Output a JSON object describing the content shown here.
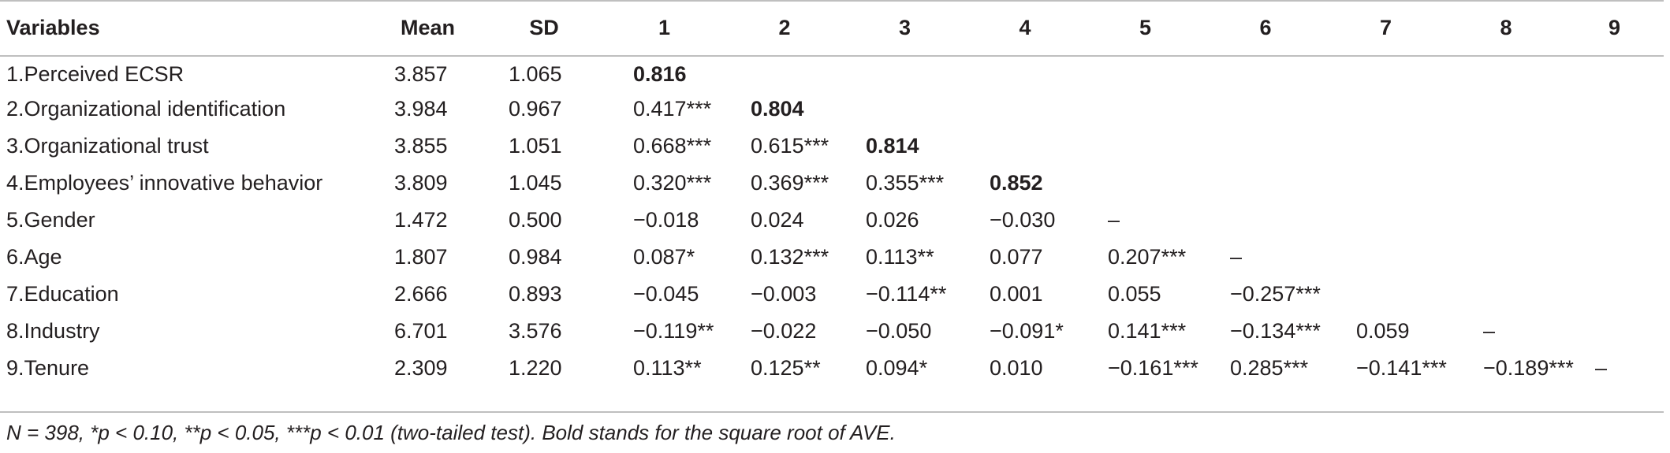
{
  "table": {
    "headers": [
      "Variables",
      "Mean",
      "SD",
      "1",
      "2",
      "3",
      "4",
      "5",
      "6",
      "7",
      "8",
      "9"
    ],
    "rows": [
      {
        "variable": "1.Perceived ECSR",
        "mean": "3.857",
        "sd": "1.065",
        "cells": [
          "0.816",
          "",
          "",
          "",
          "",
          "",
          "",
          "",
          ""
        ],
        "bold_index": 0
      },
      {
        "variable": "2.Organizational identification",
        "mean": "3.984",
        "sd": "0.967",
        "cells": [
          "0.417***",
          "0.804",
          "",
          "",
          "",
          "",
          "",
          "",
          ""
        ],
        "bold_index": 1
      },
      {
        "variable": "3.Organizational trust",
        "mean": "3.855",
        "sd": "1.051",
        "cells": [
          "0.668***",
          "0.615***",
          "0.814",
          "",
          "",
          "",
          "",
          "",
          ""
        ],
        "bold_index": 2
      },
      {
        "variable": "4.Employees’ innovative behavior",
        "mean": "3.809",
        "sd": "1.045",
        "cells": [
          "0.320***",
          "0.369***",
          "0.355***",
          "0.852",
          "",
          "",
          "",
          "",
          ""
        ],
        "bold_index": 3
      },
      {
        "variable": "5.Gender",
        "mean": "1.472",
        "sd": "0.500",
        "cells": [
          "−0.018",
          "0.024",
          "0.026",
          "−0.030",
          "–",
          "",
          "",
          "",
          ""
        ],
        "bold_index": -1
      },
      {
        "variable": "6.Age",
        "mean": "1.807",
        "sd": "0.984",
        "cells": [
          "0.087*",
          "0.132***",
          "0.113**",
          "0.077",
          "0.207***",
          "–",
          "",
          "",
          ""
        ],
        "bold_index": -1
      },
      {
        "variable": "7.Education",
        "mean": "2.666",
        "sd": "0.893",
        "cells": [
          "−0.045",
          "−0.003",
          "−0.114**",
          "0.001",
          "0.055",
          "−0.257***",
          "",
          "",
          ""
        ],
        "bold_index": -1
      },
      {
        "variable": "8.Industry",
        "mean": "6.701",
        "sd": "3.576",
        "cells": [
          "−0.119**",
          "−0.022",
          "−0.050",
          "−0.091*",
          "0.141***",
          "−0.134***",
          "0.059",
          "–",
          ""
        ],
        "bold_index": -1
      },
      {
        "variable": "9.Tenure",
        "mean": "2.309",
        "sd": "1.220",
        "cells": [
          "0.113**",
          "0.125**",
          "0.094*",
          "0.010",
          "−0.161***",
          "0.285***",
          "−0.141***",
          "−0.189***",
          "–"
        ],
        "bold_index": -1
      }
    ]
  },
  "footnote": "N = 398, *p < 0.10, **p < 0.05, ***p < 0.01 (two-tailed test). Bold stands for the square root of AVE."
}
